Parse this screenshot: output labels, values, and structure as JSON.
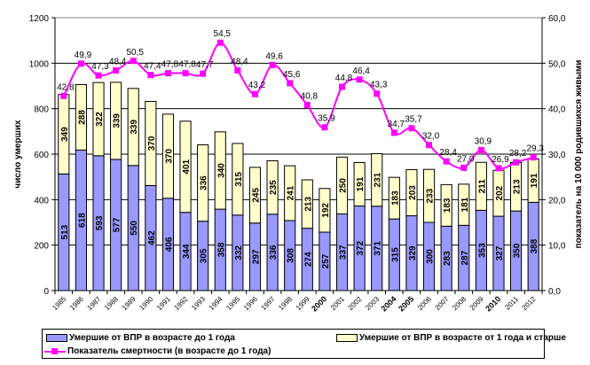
{
  "chart_data": {
    "type": "bar",
    "stacked": true,
    "title": "",
    "categories": [
      "1985",
      "1986",
      "1987",
      "1988",
      "1989",
      "1990",
      "1991",
      "1992",
      "1993",
      "1994",
      "1995",
      "1996",
      "1997",
      "1998",
      "1999",
      "2000",
      "2001",
      "2002",
      "2003",
      "2004",
      "2005",
      "2006",
      "2007",
      "2008",
      "2009",
      "2010",
      "2011",
      "2012"
    ],
    "bold_categories": [
      "2000",
      "2004",
      "2005",
      "2010"
    ],
    "series": [
      {
        "name": "Умершие от ВПР в возрасте до 1 года",
        "type": "bar",
        "axis": "left",
        "color": "#9999ff",
        "values": [
          513,
          618,
          593,
          577,
          550,
          462,
          406,
          344,
          305,
          358,
          332,
          297,
          336,
          308,
          274,
          257,
          337,
          372,
          371,
          315,
          329,
          300,
          283,
          287,
          353,
          327,
          350,
          388
        ]
      },
      {
        "name": "Умершие от ВПР в возрасте от 1 года и старше",
        "type": "bar",
        "axis": "left",
        "color": "#ffffcc",
        "values": [
          349,
          288,
          322,
          339,
          339,
          370,
          370,
          401,
          336,
          340,
          315,
          245,
          235,
          241,
          213,
          192,
          250,
          191,
          231,
          183,
          203,
          233,
          183,
          181,
          211,
          202,
          213,
          191
        ]
      },
      {
        "name": "Показатель смертности (в возрасте до 1 года)",
        "type": "line",
        "axis": "right",
        "color": "#ff00ff",
        "values": [
          42.8,
          49.9,
          47.3,
          48.4,
          50.5,
          47.4,
          47.8,
          47.8,
          47.7,
          54.5,
          48.4,
          43.2,
          49.6,
          45.6,
          40.8,
          35.9,
          44.8,
          46.4,
          43.3,
          34.7,
          35.7,
          32.0,
          28.4,
          27.0,
          30.9,
          26.9,
          28.2,
          29.3
        ],
        "labels": [
          "42,8",
          "49,9",
          "47,3",
          "48,4",
          "50,5",
          "47,4",
          "47,8",
          "47,8",
          "47,7",
          "54,5",
          "48,4",
          "43,2",
          "49,6",
          "45,6",
          "40,8",
          "35,9",
          "44,8",
          "46,4",
          "43,3",
          "34,7",
          "35,7",
          "32,0",
          "28,4",
          "27,0",
          "30,9",
          "26,9",
          "28,2",
          "29,3"
        ]
      }
    ],
    "ylabel": "число умерших",
    "ylabel_right": "показатель на 10 000 родившихся живыми",
    "ylim": [
      0,
      1200
    ],
    "ylim_right": [
      0,
      60
    ],
    "yticks": [
      "0",
      "200",
      "400",
      "600",
      "800",
      "1000",
      "1200"
    ],
    "yticks_right": [
      "0,0",
      "10,0",
      "20,0",
      "30,0",
      "40,0",
      "50,0",
      "60,0"
    ],
    "grid": true,
    "legend": "bottom"
  }
}
